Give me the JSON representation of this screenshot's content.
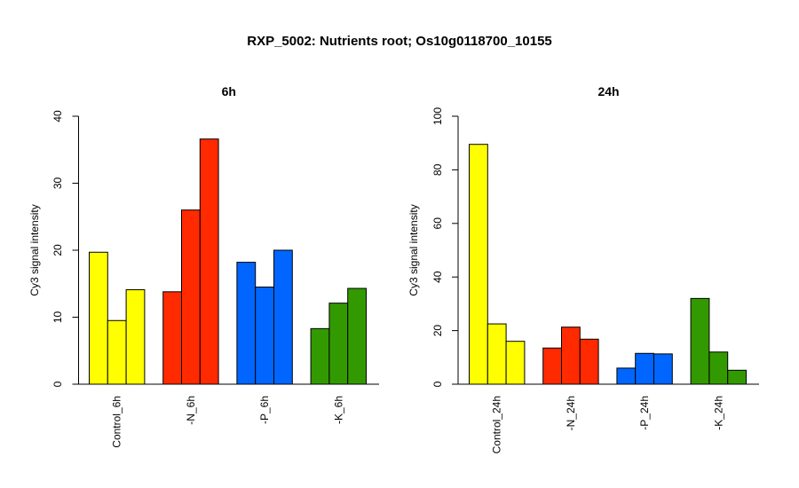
{
  "title": "RXP_5002: Nutrients root; Os10g0118700_10155",
  "chart_data": [
    {
      "type": "bar",
      "title": "6h",
      "ylabel": "Cy3 signal intensity",
      "ylim": [
        0,
        40
      ],
      "yticks": [
        0,
        10,
        20,
        30,
        40
      ],
      "groups": [
        {
          "label": "Control_6h",
          "color": "#ffff00",
          "values": [
            19.7,
            9.5,
            14.1
          ]
        },
        {
          "label": "-N_6h",
          "color": "#ff2a00",
          "values": [
            13.8,
            26.0,
            36.6
          ]
        },
        {
          "label": "-P_6h",
          "color": "#0066ff",
          "values": [
            18.2,
            14.5,
            20.0
          ]
        },
        {
          "label": "-K_6h",
          "color": "#339900",
          "values": [
            8.3,
            12.1,
            14.3
          ]
        }
      ]
    },
    {
      "type": "bar",
      "title": "24h",
      "ylabel": "Cy3 signal intensity",
      "ylim": [
        0,
        100
      ],
      "yticks": [
        0,
        20,
        40,
        60,
        80,
        100
      ],
      "groups": [
        {
          "label": "Control_24h",
          "color": "#ffff00",
          "values": [
            89.5,
            22.5,
            16.0
          ]
        },
        {
          "label": "-N_24h",
          "color": "#ff2a00",
          "values": [
            13.5,
            21.3,
            16.8
          ]
        },
        {
          "label": "-P_24h",
          "color": "#0066ff",
          "values": [
            6.0,
            11.5,
            11.3
          ]
        },
        {
          "label": "-K_24h",
          "color": "#339900",
          "values": [
            32.0,
            12.0,
            5.2
          ]
        }
      ]
    }
  ]
}
